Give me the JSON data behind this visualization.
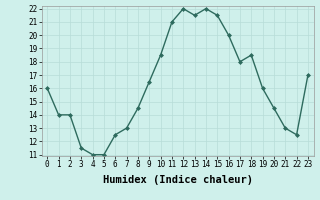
{
  "x": [
    0,
    1,
    2,
    3,
    4,
    5,
    6,
    7,
    8,
    9,
    10,
    11,
    12,
    13,
    14,
    15,
    16,
    17,
    18,
    19,
    20,
    21,
    22,
    23
  ],
  "y": [
    16,
    14,
    14,
    11.5,
    11,
    11,
    12.5,
    13,
    14.5,
    16.5,
    18.5,
    21,
    22,
    21.5,
    22,
    21.5,
    20,
    18,
    18.5,
    16,
    14.5,
    13,
    12.5,
    17
  ],
  "line_color": "#2e6b5e",
  "marker": "D",
  "marker_size": 2.0,
  "bg_color": "#cff0eb",
  "grid_color": "#b8ddd8",
  "xlabel": "Humidex (Indice chaleur)",
  "xlabel_fontsize": 7.5,
  "ylim": [
    11,
    22
  ],
  "xlim": [
    -0.5,
    23.5
  ],
  "yticks": [
    11,
    12,
    13,
    14,
    15,
    16,
    17,
    18,
    19,
    20,
    21,
    22
  ],
  "xticks": [
    0,
    1,
    2,
    3,
    4,
    5,
    6,
    7,
    8,
    9,
    10,
    11,
    12,
    13,
    14,
    15,
    16,
    17,
    18,
    19,
    20,
    21,
    22,
    23
  ],
  "tick_fontsize": 5.5,
  "line_width": 1.0
}
